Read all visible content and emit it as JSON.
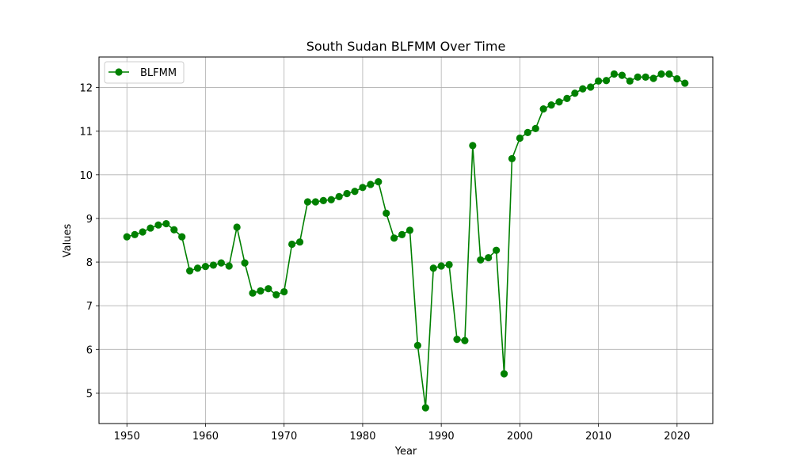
{
  "chart_data": {
    "type": "line",
    "title": "South Sudan BLFMM Over Time",
    "xlabel": "Year",
    "ylabel": "Values",
    "xlim": [
      1946.45,
      2024.55
    ],
    "ylim": [
      4.3,
      12.7
    ],
    "x_ticks": [
      1950,
      1960,
      1970,
      1980,
      1990,
      2000,
      2010,
      2020
    ],
    "y_ticks": [
      5,
      6,
      7,
      8,
      9,
      10,
      11,
      12
    ],
    "grid": true,
    "legend_position": "top-left",
    "series": [
      {
        "name": "BLFMM",
        "color": "#008000",
        "marker": "circle",
        "x": [
          1950,
          1951,
          1952,
          1953,
          1954,
          1955,
          1956,
          1957,
          1958,
          1959,
          1960,
          1961,
          1962,
          1963,
          1964,
          1965,
          1966,
          1967,
          1968,
          1969,
          1970,
          1971,
          1972,
          1973,
          1974,
          1975,
          1976,
          1977,
          1978,
          1979,
          1980,
          1981,
          1982,
          1983,
          1984,
          1985,
          1986,
          1987,
          1988,
          1989,
          1990,
          1991,
          1992,
          1993,
          1994,
          1995,
          1996,
          1997,
          1998,
          1999,
          2000,
          2001,
          2002,
          2003,
          2004,
          2005,
          2006,
          2007,
          2008,
          2009,
          2010,
          2011,
          2012,
          2013,
          2014,
          2015,
          2016,
          2017,
          2018,
          2019,
          2020,
          2021
        ],
        "values": [
          8.58,
          8.63,
          8.69,
          8.78,
          8.85,
          8.88,
          8.74,
          8.58,
          7.8,
          7.86,
          7.9,
          7.93,
          7.98,
          7.91,
          8.8,
          7.98,
          7.29,
          7.34,
          7.39,
          7.25,
          7.32,
          8.41,
          8.46,
          9.38,
          9.38,
          9.41,
          9.43,
          9.5,
          9.57,
          9.62,
          9.71,
          9.78,
          9.84,
          9.12,
          8.55,
          8.63,
          8.73,
          6.09,
          4.66,
          7.86,
          7.91,
          7.94,
          6.23,
          6.2,
          10.67,
          8.05,
          8.1,
          8.27,
          5.44,
          10.37,
          10.84,
          10.97,
          11.06,
          11.51,
          11.6,
          11.67,
          11.75,
          11.87,
          11.97,
          12.01,
          12.15,
          12.16,
          12.31,
          12.28,
          12.15,
          12.24,
          12.24,
          12.21,
          12.31,
          12.31,
          12.2,
          12.1
        ]
      }
    ]
  }
}
